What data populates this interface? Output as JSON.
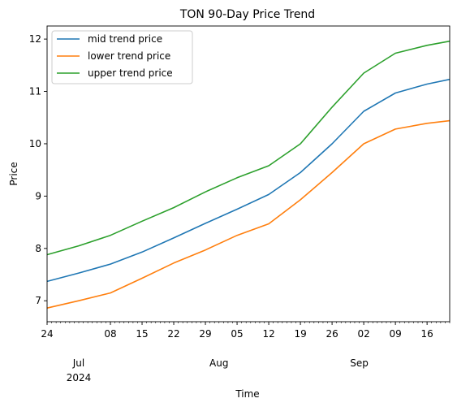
{
  "chart_data": {
    "type": "line",
    "title": "TON 90-Day Price Trend",
    "xlabel": "Time",
    "ylabel": "Price",
    "xlim": [
      "2024-06-24",
      "2024-09-21"
    ],
    "ylim": [
      6.6,
      12.25
    ],
    "grid": false,
    "legend_position": "top-left",
    "x_ticks": [
      "24",
      "08",
      "15",
      "22",
      "29",
      "05",
      "12",
      "19",
      "26",
      "02",
      "09",
      "16"
    ],
    "x_tick_dates": [
      "2024-06-24",
      "2024-07-08",
      "2024-07-15",
      "2024-07-22",
      "2024-07-29",
      "2024-08-05",
      "2024-08-12",
      "2024-08-19",
      "2024-08-26",
      "2024-09-02",
      "2024-09-09",
      "2024-09-16"
    ],
    "x_month_labels": [
      {
        "label": "Jul",
        "date": "2024-07-01"
      },
      {
        "label": "Aug",
        "date": "2024-08-01"
      },
      {
        "label": "Sep",
        "date": "2024-09-01"
      }
    ],
    "x_year_label": {
      "label": "2024",
      "date": "2024-07-01"
    },
    "y_ticks": [
      7,
      8,
      9,
      10,
      11,
      12
    ],
    "x": [
      "2024-06-24",
      "2024-07-01",
      "2024-07-08",
      "2024-07-15",
      "2024-07-22",
      "2024-07-29",
      "2024-08-05",
      "2024-08-12",
      "2024-08-19",
      "2024-08-26",
      "2024-09-02",
      "2024-09-09",
      "2024-09-16",
      "2024-09-21"
    ],
    "series": [
      {
        "name": "mid trend price",
        "color": "#1f77b4",
        "values": [
          7.37,
          7.53,
          7.7,
          7.93,
          8.2,
          8.48,
          8.75,
          9.03,
          9.45,
          10.0,
          10.62,
          10.97,
          11.14,
          11.23
        ]
      },
      {
        "name": "lower trend price",
        "color": "#ff7f0e",
        "values": [
          6.86,
          7.0,
          7.15,
          7.43,
          7.72,
          7.97,
          8.25,
          8.47,
          8.93,
          9.45,
          10.0,
          10.28,
          10.39,
          10.44
        ]
      },
      {
        "name": "upper trend price",
        "color": "#2ca02c",
        "values": [
          7.88,
          8.05,
          8.25,
          8.52,
          8.78,
          9.08,
          9.35,
          9.58,
          10.0,
          10.7,
          11.35,
          11.73,
          11.88,
          11.96
        ]
      }
    ]
  }
}
